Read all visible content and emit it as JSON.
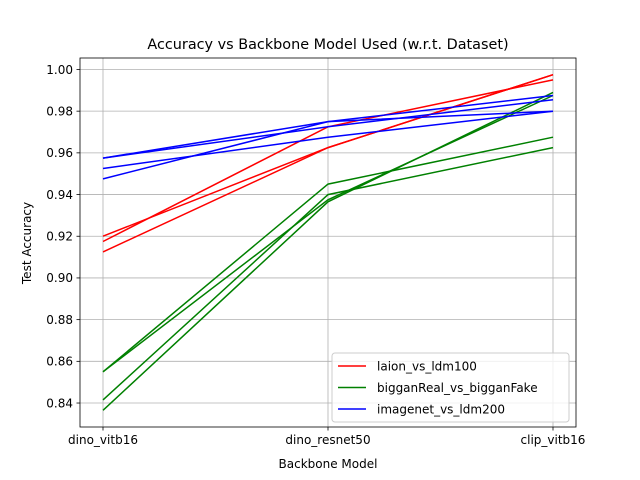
{
  "chart_data": {
    "type": "line",
    "title": "Accuracy vs Backbone Model Used (w.r.t. Dataset)",
    "xlabel": "Backbone Model",
    "ylabel": "Test Accuracy",
    "categories": [
      "dino_vitb16",
      "dino_resnet50",
      "clip_vitb16"
    ],
    "ylim": [
      0.8285,
      1.0055
    ],
    "yticks": [
      "0.84",
      "0.86",
      "0.88",
      "0.90",
      "0.92",
      "0.94",
      "0.96",
      "0.98",
      "1.00"
    ],
    "grid": true,
    "legend_position": "bottom-right",
    "legend": [
      {
        "label": "laion_vs_ldm100",
        "color": "#ff0000"
      },
      {
        "label": "bigganReal_vs_bigganFake",
        "color": "#008000"
      },
      {
        "label": "imagenet_vs_ldm200",
        "color": "#0000ff"
      }
    ],
    "series": [
      {
        "group": 0,
        "color": "#ff0000",
        "values": [
          0.92,
          0.9625,
          0.9975
        ]
      },
      {
        "group": 0,
        "color": "#ff0000",
        "values": [
          0.9175,
          0.9725,
          0.995
        ]
      },
      {
        "group": 0,
        "color": "#ff0000",
        "values": [
          0.9125,
          0.9625,
          0.9975
        ]
      },
      {
        "group": 1,
        "color": "#008000",
        "values": [
          0.855,
          0.945,
          0.9675
        ]
      },
      {
        "group": 1,
        "color": "#008000",
        "values": [
          0.855,
          0.9375,
          0.9875
        ]
      },
      {
        "group": 1,
        "color": "#008000",
        "values": [
          0.8415,
          0.94,
          0.9625
        ]
      },
      {
        "group": 1,
        "color": "#008000",
        "values": [
          0.8365,
          0.9365,
          0.989
        ]
      },
      {
        "group": 2,
        "color": "#0000ff",
        "values": [
          0.9575,
          0.975,
          0.98
        ]
      },
      {
        "group": 2,
        "color": "#0000ff",
        "values": [
          0.9525,
          0.9675,
          0.98
        ]
      },
      {
        "group": 2,
        "color": "#0000ff",
        "values": [
          0.9475,
          0.975,
          0.9875
        ]
      },
      {
        "group": 2,
        "color": "#0000ff",
        "values": [
          0.9575,
          0.9725,
          0.9855
        ]
      }
    ]
  }
}
